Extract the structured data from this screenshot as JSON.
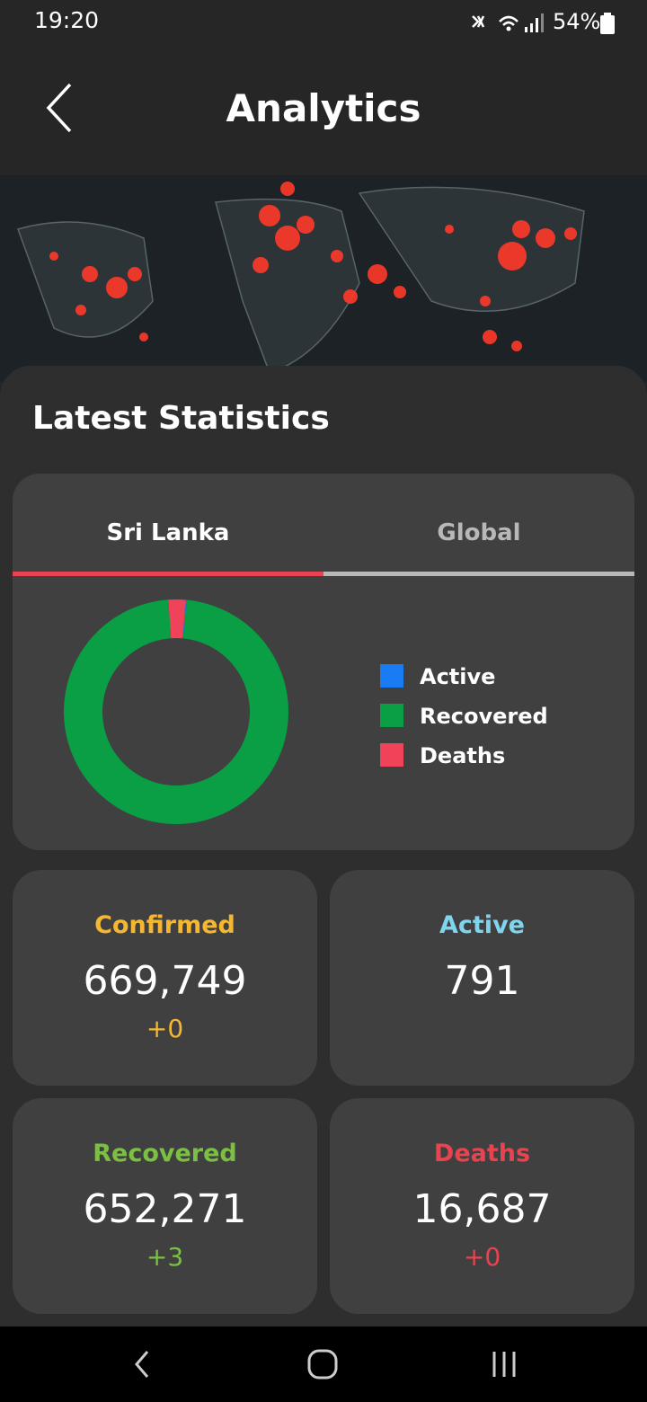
{
  "status_bar": {
    "time": "19:20",
    "battery": "54%"
  },
  "header": {
    "title": "Analytics"
  },
  "section": {
    "title": "Latest Statistics"
  },
  "tabs": [
    "Sri Lanka",
    "Global"
  ],
  "chart_data": {
    "type": "pie",
    "donut": true,
    "categories": [
      "Active",
      "Recovered",
      "Deaths"
    ],
    "values": [
      791,
      652271,
      16687
    ],
    "colors": [
      "#1a7cf5",
      "#0a9e45",
      "#f0435a"
    ]
  },
  "cards": [
    {
      "label": "Confirmed",
      "value": "669,749",
      "change": "+0",
      "color": "#f5b731"
    },
    {
      "label": "Active",
      "value": "791",
      "color": "#7fd4ee"
    },
    {
      "label": "Recovered",
      "value": "652,271",
      "change": "+3",
      "color": "#7bc043"
    },
    {
      "label": "Deaths",
      "value": "16,687",
      "change": "+0",
      "color": "#e8434f"
    }
  ]
}
